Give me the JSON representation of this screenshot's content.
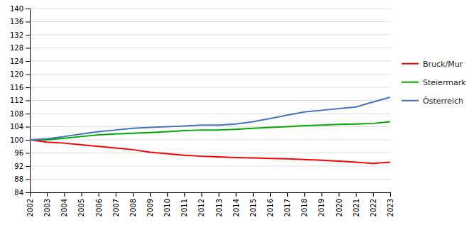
{
  "chart_data": {
    "type": "line",
    "x": [
      2002,
      2003,
      2004,
      2005,
      2006,
      2007,
      2008,
      2009,
      2010,
      2011,
      2012,
      2013,
      2014,
      2015,
      2016,
      2017,
      2018,
      2019,
      2020,
      2021,
      2022,
      2023
    ],
    "xlim": [
      2002,
      2023
    ],
    "xticks": [
      2002,
      2003,
      2004,
      2005,
      2006,
      2007,
      2008,
      2009,
      2010,
      2011,
      2012,
      2013,
      2014,
      2015,
      2016,
      2017,
      2018,
      2019,
      2020,
      2021,
      2022,
      2023
    ],
    "ylim": [
      84,
      140
    ],
    "yticks": [
      84,
      88,
      92,
      96,
      100,
      104,
      108,
      112,
      116,
      120,
      124,
      128,
      132,
      136,
      140
    ],
    "grid": "y",
    "legend": "right",
    "series": [
      {
        "name": "Bruck/Mur",
        "color": "#FF0000",
        "values": [
          100,
          99.3,
          99.0,
          98.5,
          98.0,
          97.5,
          97.0,
          96.2,
          95.8,
          95.3,
          95.0,
          94.8,
          94.6,
          94.5,
          94.3,
          94.2,
          94.0,
          93.8,
          93.5,
          93.2,
          92.8,
          93.2
        ]
      },
      {
        "name": "Steiermark",
        "color": "#00AA00",
        "values": [
          100,
          100.0,
          100.5,
          101.0,
          101.5,
          101.8,
          102.0,
          102.2,
          102.5,
          102.8,
          103.0,
          103.0,
          103.2,
          103.5,
          103.8,
          104.0,
          104.3,
          104.5,
          104.7,
          104.8,
          105.0,
          105.5
        ]
      },
      {
        "name": "Österreich",
        "color": "#4472C4",
        "values": [
          100,
          100.3,
          101.0,
          101.8,
          102.5,
          103.0,
          103.5,
          103.8,
          104.0,
          104.2,
          104.5,
          104.5,
          104.8,
          105.5,
          106.5,
          107.5,
          108.5,
          109.0,
          109.5,
          110.0,
          111.5,
          113.0
        ]
      }
    ]
  }
}
